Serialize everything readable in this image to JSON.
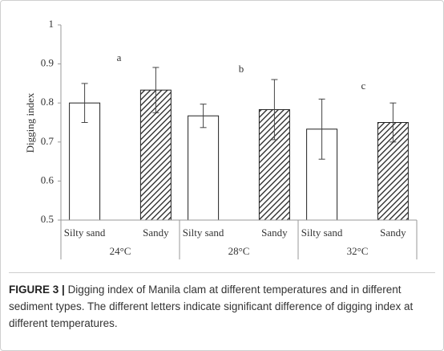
{
  "chart_data": {
    "type": "bar",
    "y_label": "Digging index",
    "categories": [
      "24°C",
      "28°C",
      "32°C"
    ],
    "series": [
      {
        "name": "Silty sand",
        "color": "#ffffff",
        "hatched": false,
        "values": [
          0.8,
          0.767,
          0.733
        ],
        "errors": [
          0.05,
          0.03,
          0.077
        ]
      },
      {
        "name": "Sandy",
        "color": "#ffffff",
        "hatched": true,
        "values": [
          0.833,
          0.783,
          0.75
        ],
        "errors": [
          0.058,
          0.077,
          0.05
        ]
      }
    ],
    "annotations": [
      "a",
      "b",
      "c"
    ],
    "ylim": [
      0.5,
      1
    ],
    "yticks": [
      0.5,
      0.6,
      0.7,
      0.8,
      0.9,
      1
    ],
    "grid": false
  },
  "caption_label": "FIGURE 3 |",
  "caption": "Digging index of Manila clam at different temperatures and in different sediment types. The different letters indicate significant difference of digging index at different temperatures."
}
